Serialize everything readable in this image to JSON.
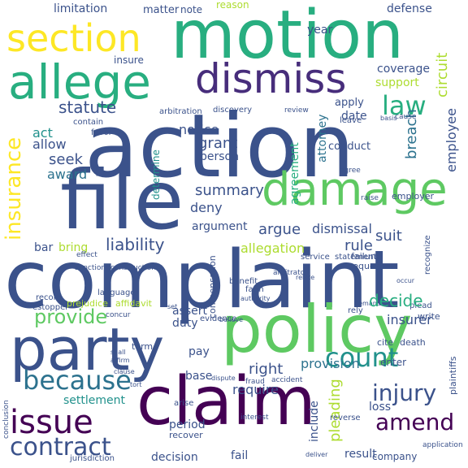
{
  "words": [
    "action",
    "complaint",
    "file",
    "motion",
    "claim",
    "policy",
    "party",
    "damage",
    "allege",
    "dismiss",
    "section",
    "issue",
    "contract",
    "because",
    "amend",
    "count",
    "injury",
    "law",
    "insurance",
    "provide",
    "liability",
    "statute",
    "summary",
    "notice",
    "grant",
    "seek",
    "award",
    "act",
    "allow",
    "deny",
    "argue",
    "dismissal",
    "argument",
    "suit",
    "allegation",
    "rule",
    "bring",
    "bar",
    "duty",
    "insurer",
    "assert",
    "right",
    "provision",
    "pleading",
    "include",
    "require",
    "base",
    "pay",
    "period",
    "decision",
    "fail",
    "result",
    "settlement",
    "conduct",
    "attorney",
    "agreement",
    "date",
    "breach",
    "apply",
    "support",
    "coverage",
    "circuit",
    "employee",
    "defense",
    "limitation",
    "matter",
    "note",
    "reason",
    "year",
    "insure",
    "person",
    "determine",
    "loss",
    "company",
    "recover",
    "evidence",
    "death",
    "term",
    "prejudice",
    "affidavit",
    "language",
    "record",
    "estoppel",
    "effect",
    "jurisdiction",
    "conclusion",
    "plaintiffs",
    "application",
    "enter",
    "cite",
    "write",
    "plead",
    "rely",
    "faith",
    "benefit",
    "statement",
    "failure",
    "request",
    "employer",
    "raise",
    "agree",
    "leave",
    "cause",
    "arbitration",
    "favor",
    "contain",
    "discovery",
    "review",
    "service",
    "reverse",
    "arise",
    "accident",
    "fraud",
    "interest",
    "construction",
    "sanction",
    "compensation",
    "arbitrator",
    "recognize",
    "occur",
    "relate",
    "remand",
    "concur",
    "authority",
    "set",
    "believe",
    "affirm",
    "dispute",
    "clause",
    "shall",
    "tort",
    "deliver",
    "basis",
    "decide",
    "agent",
    "cause",
    "ch"
  ]
}
